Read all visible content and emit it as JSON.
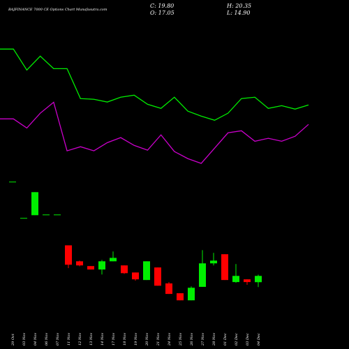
{
  "title": "BAJFINANCE 7000 CE Options Chart Munafasutra.com",
  "info": {
    "close": "C: 19.80",
    "high": "H: 20.35",
    "open": "O: 17.05",
    "low": "L: 14.90"
  },
  "chart_data": [
    {
      "type": "line",
      "categories": [
        null,
        null,
        null,
        null,
        null,
        null,
        null,
        null,
        null,
        null,
        null,
        null,
        null,
        null,
        null,
        null,
        null,
        null,
        null,
        null,
        null,
        null,
        null,
        null
      ],
      "ylim": [
        0,
        140.7
      ],
      "series": [
        {
          "color": "#00ee00",
          "values": [
            119.2,
            119.2,
            110.0,
            116.1,
            110.6,
            110.6,
            97.5,
            97.2,
            96.0,
            98.1,
            99.0,
            95.0,
            93.2,
            98.1,
            92.0,
            89.8,
            88.0,
            91.1,
            97.5,
            98.1,
            93.2,
            94.4,
            92.9,
            94.7
          ]
        },
        {
          "color": "#cc00cc",
          "values": [
            88.6,
            88.6,
            84.6,
            91.1,
            95.9,
            74.6,
            76.4,
            74.6,
            78.2,
            80.4,
            77.0,
            74.9,
            81.6,
            74.3,
            71.2,
            69.1,
            75.8,
            82.5,
            83.4,
            78.8,
            80.1,
            78.8,
            81.0,
            86.2
          ]
        }
      ]
    },
    {
      "type": "candlestick",
      "categories": [
        "29 Oct",
        "03 Nov",
        "04 Nov",
        "06 Nov",
        "07 Nov",
        "11 Nov",
        "12 Nov",
        "13 Nov",
        "14 Nov",
        "17 Nov",
        "18 Nov",
        "19 Nov",
        "20 Nov",
        "21 Nov",
        "24 Nov",
        "25 Nov",
        "26 Nov",
        "27 Nov",
        "28 Nov",
        "01 Dec",
        "02 Dec",
        "03 Dec",
        "04 Dec"
      ],
      "ylim": [
        0,
        140.7
      ],
      "up_color": "#00ee00",
      "down_color": "#ff0000",
      "open": [
        61.1,
        45.2,
        46.4,
        46.7,
        46.7,
        33.2,
        26.2,
        24.1,
        22.6,
        26.2,
        24.4,
        21.3,
        18.0,
        23.5,
        16.5,
        12.2,
        9.1,
        15.0,
        25.3,
        29.3,
        17.1,
        18.3,
        17.05
      ],
      "high": [
        61.1,
        45.2,
        56.5,
        46.7,
        46.7,
        33.2,
        26.5,
        24.1,
        26.8,
        30.5,
        24.4,
        21.3,
        26.2,
        23.5,
        17.1,
        12.2,
        15.2,
        31.1,
        29.9,
        29.3,
        25.0,
        18.3,
        20.35
      ],
      "low": [
        61.1,
        45.2,
        46.4,
        46.7,
        46.7,
        23.2,
        24.0,
        22.6,
        20.4,
        26.2,
        20.7,
        17.7,
        18.0,
        15.5,
        11.9,
        9.1,
        9.1,
        15.0,
        24.4,
        18.0,
        16.8,
        15.9,
        14.9
      ],
      "close": [
        61.1,
        45.2,
        56.5,
        46.7,
        46.7,
        24.7,
        24.4,
        22.6,
        26.2,
        27.7,
        21.0,
        18.3,
        26.2,
        15.5,
        11.9,
        9.1,
        14.6,
        25.3,
        26.5,
        18.0,
        19.8,
        17.1,
        19.8
      ]
    }
  ]
}
